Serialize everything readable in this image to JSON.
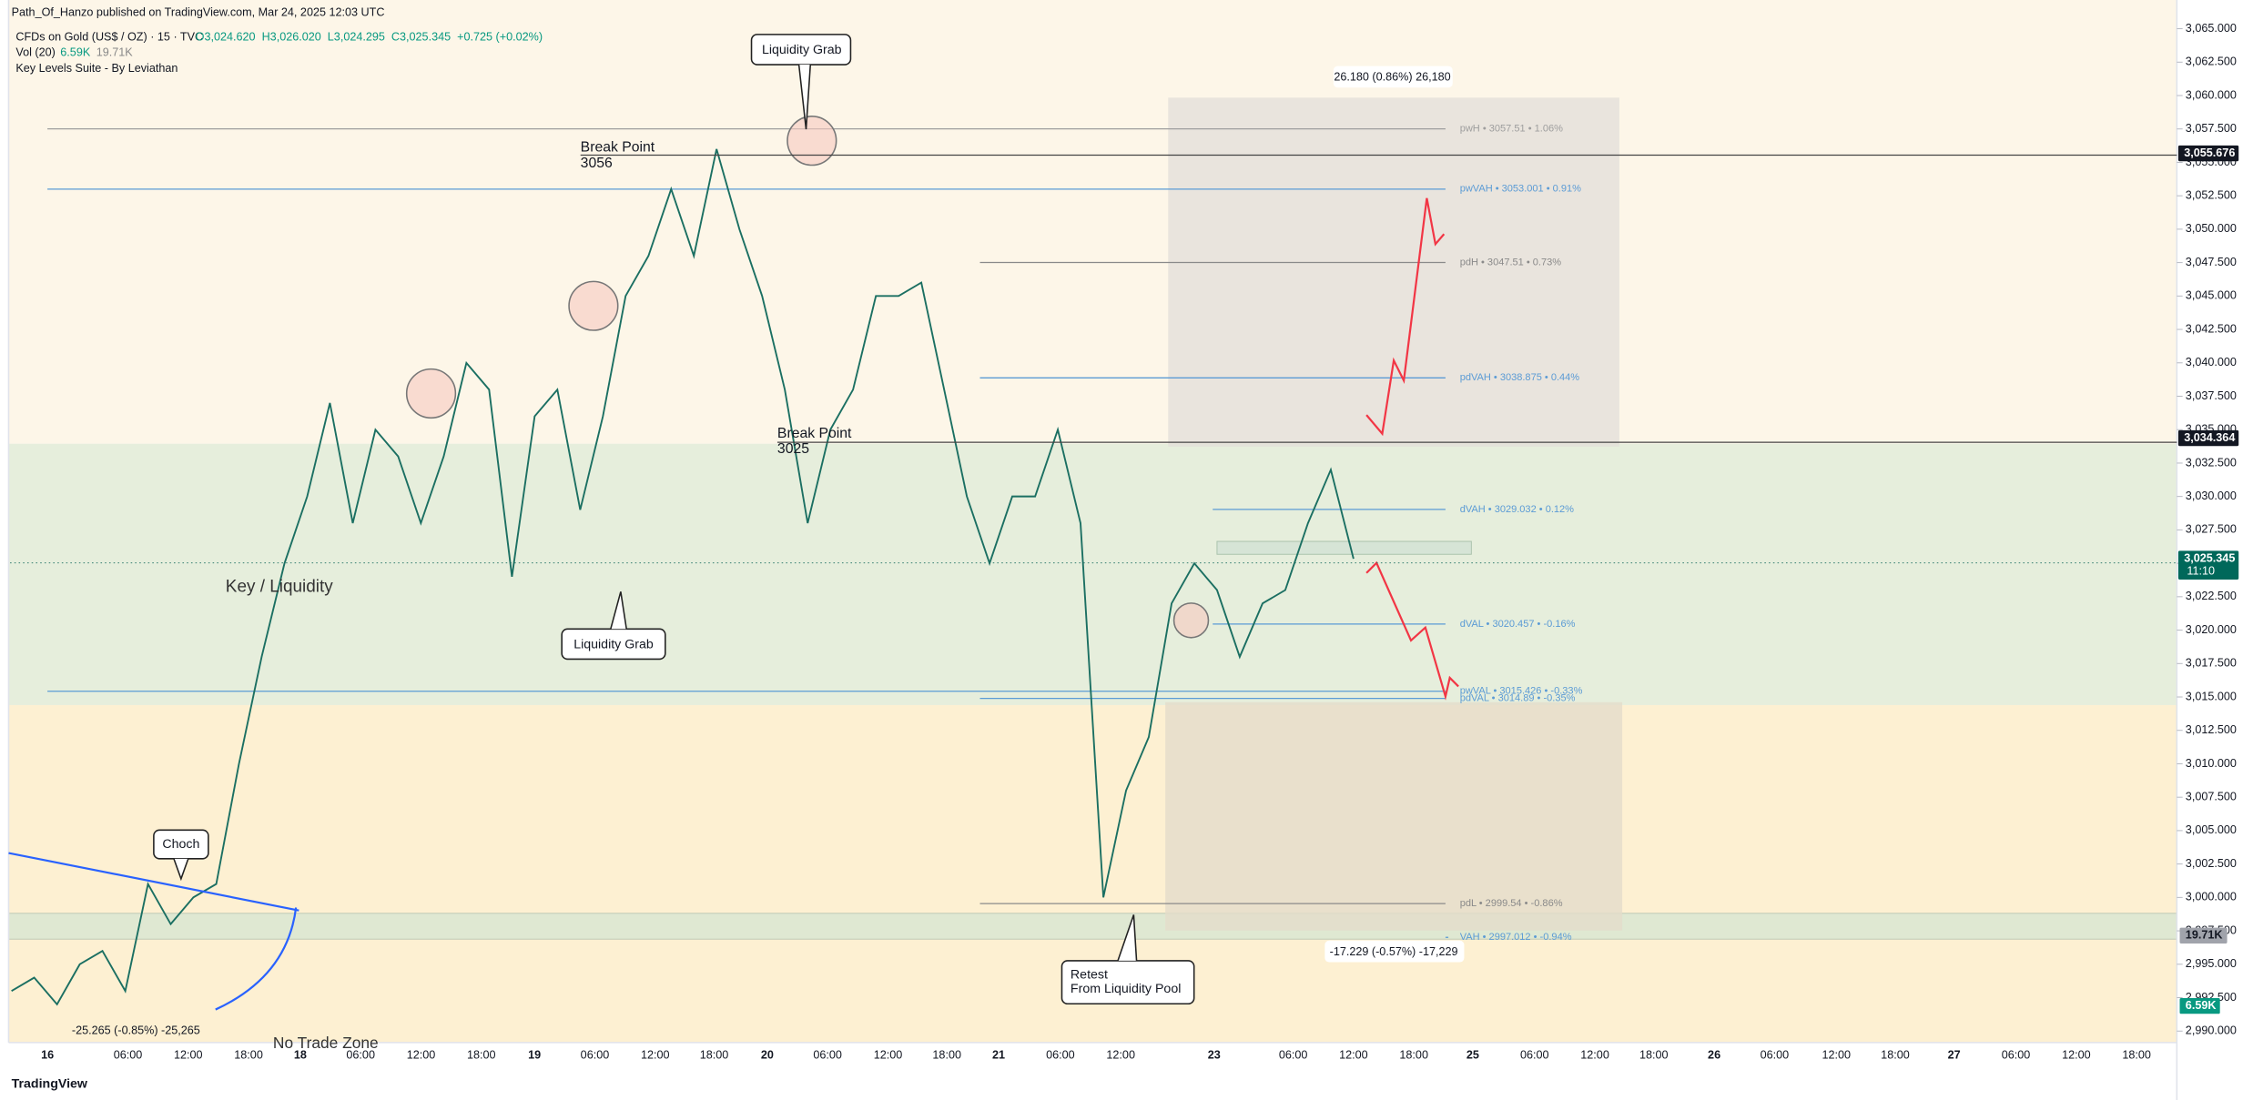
{
  "header": {
    "publisher": "Path_Of_Hanzo published on TradingView.com, Mar 24, 2025 12:03 UTC",
    "symbol": "CFDs on Gold (US$ / OZ) · 15 · TVC",
    "quote": "O3,024.620  H3,026.020  L3,024.295  C3,025.345  +0.725 (+0.02%)",
    "vol": "Vol (20)",
    "vol_a": "6.59K",
    "vol_b": "19.71K",
    "indicator": "Key Levels Suite - By Leviathan"
  },
  "chart_data": {
    "type": "line",
    "color": "#1b6f62",
    "values": [
      2993,
      2994,
      2992,
      2995,
      2996,
      2993,
      3001,
      2998,
      3000,
      3001,
      3010,
      3018,
      3025,
      3030,
      3037,
      3028,
      3035,
      3033,
      3028,
      3033,
      3040,
      3038,
      3024,
      3036,
      3038,
      3029,
      3036,
      3045,
      3048,
      3053,
      3048,
      3056,
      3050,
      3045,
      3038,
      3028,
      3035,
      3038,
      3045,
      3045,
      3046,
      3038,
      3030,
      3025,
      3030,
      3030,
      3035,
      3028,
      3000,
      3008,
      3012,
      3022,
      3025,
      3023,
      3018,
      3022,
      3023,
      3028,
      3032,
      3025.345
    ],
    "ylim": [
      2990,
      3065
    ],
    "yticks": [
      {
        "value": 2990,
        "label": "2,990.000"
      },
      {
        "value": 2992.5,
        "label": "2,992.500"
      },
      {
        "value": 2995,
        "label": "2,995.000"
      },
      {
        "value": 2997.5,
        "label": "2,997.500"
      },
      {
        "value": 3000,
        "label": "3,000.000"
      },
      {
        "value": 3002.5,
        "label": "3,002.500"
      },
      {
        "value": 3005,
        "label": "3,005.000"
      },
      {
        "value": 3007.5,
        "label": "3,007.500"
      },
      {
        "value": 3010,
        "label": "3,010.000"
      },
      {
        "value": 3012.5,
        "label": "3,012.500"
      },
      {
        "value": 3015,
        "label": "3,015.000"
      },
      {
        "value": 3017.5,
        "label": "3,017.500"
      },
      {
        "value": 3020,
        "label": "3,020.000"
      },
      {
        "value": 3022.5,
        "label": "3,022.500"
      },
      {
        "value": 3025,
        "label": "3,025.000"
      },
      {
        "value": 3027.5,
        "label": "3,027.500"
      },
      {
        "value": 3030,
        "label": "3,030.000"
      },
      {
        "value": 3032.5,
        "label": "3,032.500"
      },
      {
        "value": 3035,
        "label": "3,035.000"
      },
      {
        "value": 3037.5,
        "label": "3,037.500"
      },
      {
        "value": 3040,
        "label": "3,040.000"
      },
      {
        "value": 3042.5,
        "label": "3,042.500"
      },
      {
        "value": 3045,
        "label": "3,045.000"
      },
      {
        "value": 3047.5,
        "label": "3,047.500"
      },
      {
        "value": 3050,
        "label": "3,050.000"
      },
      {
        "value": 3052.5,
        "label": "3,052.500"
      },
      {
        "value": 3055,
        "label": "3,055.000"
      },
      {
        "value": 3057.5,
        "label": "3,057.500"
      },
      {
        "value": 3060,
        "label": "3,060.000"
      },
      {
        "value": 3062.5,
        "label": "3,062.500"
      },
      {
        "value": 3065,
        "label": "3,065.000"
      }
    ],
    "price_labels": [
      {
        "value": 3055.676,
        "label": "3,055.676"
      },
      {
        "value": 3034.364,
        "label": "3,034.364"
      },
      {
        "value": 3025.345,
        "label": "3,025.345"
      }
    ],
    "countdown": "11:10",
    "levels": [
      {
        "value": 3057.51,
        "label": "pwH • 3057.51 • 1.06%",
        "color": "#9e9e9e"
      },
      {
        "value": 3053.001,
        "label": "pwVAH • 3053.001 • 0.91%",
        "color": "#5b9bd5"
      },
      {
        "value": 3047.51,
        "label": "pdH • 3047.51 • 0.73%",
        "color": "#8a8a8a"
      },
      {
        "value": 3038.875,
        "label": "pdVAH • 3038.875 • 0.44%",
        "color": "#5b9bd5"
      },
      {
        "value": 3029.032,
        "label": "dVAH • 3029.032 • 0.12%",
        "color": "#5b9bd5"
      },
      {
        "value": 3020.457,
        "label": "dVAL • 3020.457 • -0.16%",
        "color": "#5b9bd5"
      },
      {
        "value": 3015.426,
        "label": "pwVAL • 3015.426 • -0.33%",
        "color": "#5b9bd5"
      },
      {
        "value": 3014.89,
        "label": "pdVAL • 3014.89 • -0.35%",
        "color": "#5b9bd5"
      },
      {
        "value": 2999.54,
        "label": "pdL • 2999.54 • -0.86%",
        "color": "#8a8a8a"
      },
      {
        "value": 2997.012,
        "label": "VAH • 2997.012 • -0.94%",
        "color": "#5b9bd5"
      }
    ],
    "time_labels": [
      "16",
      "06:00",
      "12:00",
      "18:00",
      "18",
      "06:00",
      "12:00",
      "18:00",
      "19",
      "06:00",
      "12:00",
      "18:00",
      "20",
      "06:00",
      "12:00",
      "18:00",
      "21",
      "06:00",
      "12:00",
      "23",
      "06:00",
      "12:00",
      "18:00",
      "25",
      "06:00",
      "12:00",
      "18:00",
      "26",
      "06:00",
      "12:00",
      "18:00",
      "27",
      "06:00",
      "12:00",
      "18:00"
    ]
  },
  "annotations": {
    "liquidity_grab_top": "Liquidity Grab",
    "liquidity_grab_low": "Liquidity Grab",
    "break_point_1": "Break Point",
    "break_point_1_value": "3056",
    "break_point_2": "Break Point",
    "break_point_2_value": "3025",
    "key_liquidity": "Key / Liquidity",
    "choch": "Choch",
    "retest_1": "Retest",
    "retest_2": "From Liquidity Pool",
    "no_trade": "No Trade Zone",
    "measure_up": "26.180 (0.86%) 26,180",
    "measure_down": "-17.229 (-0.57%) -17,229",
    "measure_left": "-25.265 (-0.85%) -25,265"
  },
  "footer": {
    "brand": "TradingView"
  }
}
